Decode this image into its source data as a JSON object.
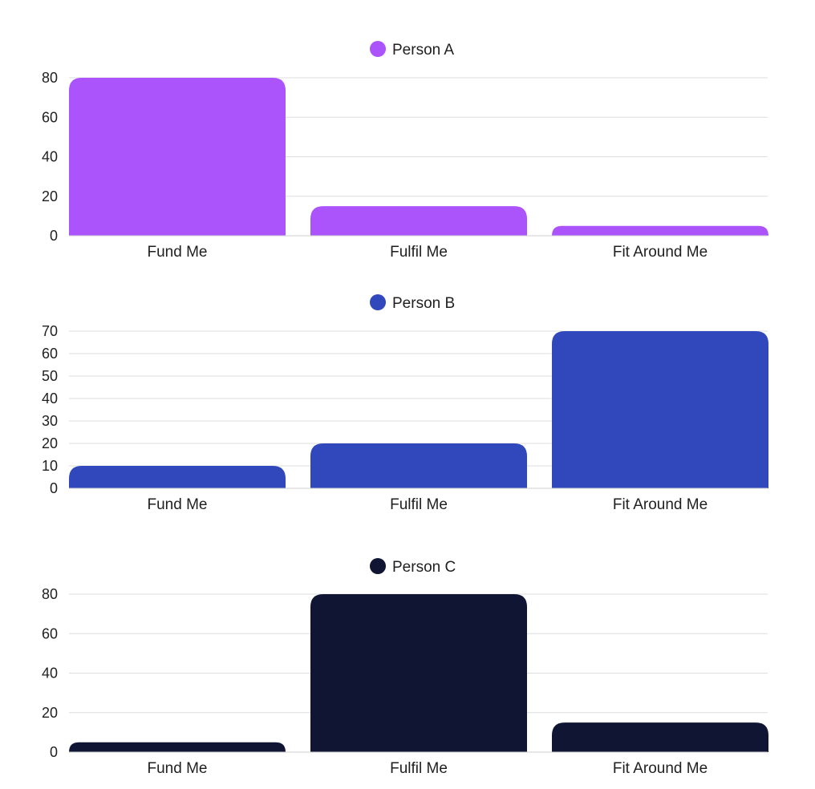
{
  "chart_data": [
    {
      "type": "bar",
      "categories": [
        "Fund Me",
        "Fulfil Me",
        "Fit Around Me"
      ],
      "series": [
        {
          "name": "Person A",
          "values": [
            80,
            15,
            5
          ],
          "color": "#ac54fc"
        }
      ],
      "yticks": [
        0,
        20,
        40,
        60,
        80
      ],
      "ylim": [
        0,
        80
      ],
      "grid": true,
      "legend": "top-center"
    },
    {
      "type": "bar",
      "categories": [
        "Fund Me",
        "Fulfil Me",
        "Fit Around Me"
      ],
      "series": [
        {
          "name": "Person B",
          "values": [
            10,
            20,
            70
          ],
          "color": "#3048bb"
        }
      ],
      "yticks": [
        0,
        10,
        20,
        30,
        40,
        50,
        60,
        70
      ],
      "ylim": [
        0,
        70
      ],
      "grid": true,
      "legend": "top-center"
    },
    {
      "type": "bar",
      "categories": [
        "Fund Me",
        "Fulfil Me",
        "Fit Around Me"
      ],
      "series": [
        {
          "name": "Person C",
          "values": [
            5,
            80,
            15
          ],
          "color": "#101533"
        }
      ],
      "yticks": [
        0,
        20,
        40,
        60,
        80
      ],
      "ylim": [
        0,
        80
      ],
      "grid": true,
      "legend": "top-center"
    }
  ]
}
